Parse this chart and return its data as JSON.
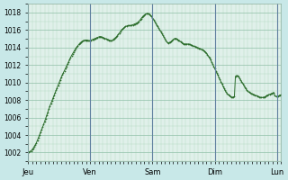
{
  "title": "",
  "background_color": "#c8e8e8",
  "plot_bg_color": "#e0f0ea",
  "line_color": "#2d6e2d",
  "marker_color": "#2d6e2d",
  "ylim": [
    1001,
    1019
  ],
  "yticks": [
    1002,
    1004,
    1006,
    1008,
    1010,
    1012,
    1014,
    1016,
    1018
  ],
  "xlabel": "",
  "ylabel": "",
  "x_day_labels": [
    "Jeu",
    "Ven",
    "Sam",
    "Dim",
    "Lun"
  ],
  "x_day_positions": [
    0,
    60,
    120,
    180,
    240
  ],
  "grid_major_color": "#90c0a8",
  "grid_minor_color": "#b0d8c0",
  "values": [
    1002.0,
    1002.05,
    1002.1,
    1002.2,
    1002.35,
    1002.5,
    1002.7,
    1002.9,
    1003.1,
    1003.4,
    1003.7,
    1004.0,
    1004.3,
    1004.6,
    1004.9,
    1005.2,
    1005.55,
    1005.9,
    1006.25,
    1006.6,
    1006.95,
    1007.3,
    1007.6,
    1007.9,
    1008.2,
    1008.5,
    1008.8,
    1009.1,
    1009.4,
    1009.7,
    1010.0,
    1010.3,
    1010.6,
    1010.85,
    1011.1,
    1011.35,
    1011.6,
    1011.85,
    1012.1,
    1012.35,
    1012.6,
    1012.85,
    1013.1,
    1013.3,
    1013.5,
    1013.7,
    1013.9,
    1014.05,
    1014.2,
    1014.35,
    1014.5,
    1014.6,
    1014.7,
    1014.75,
    1014.8,
    1014.85,
    1014.85,
    1014.85,
    1014.8,
    1014.75,
    1014.8,
    1014.85,
    1014.9,
    1014.95,
    1015.0,
    1015.05,
    1015.1,
    1015.15,
    1015.2,
    1015.25,
    1015.25,
    1015.2,
    1015.15,
    1015.1,
    1015.05,
    1015.0,
    1014.95,
    1014.9,
    1014.85,
    1014.8,
    1014.75,
    1014.8,
    1014.9,
    1015.0,
    1015.1,
    1015.2,
    1015.35,
    1015.5,
    1015.65,
    1015.8,
    1016.0,
    1016.1,
    1016.2,
    1016.3,
    1016.4,
    1016.45,
    1016.5,
    1016.5,
    1016.5,
    1016.5,
    1016.55,
    1016.6,
    1016.65,
    1016.7,
    1016.75,
    1016.8,
    1016.9,
    1017.0,
    1017.15,
    1017.3,
    1017.45,
    1017.6,
    1017.7,
    1017.8,
    1017.85,
    1017.9,
    1017.85,
    1017.8,
    1017.7,
    1017.55,
    1017.4,
    1017.2,
    1017.0,
    1016.8,
    1016.6,
    1016.4,
    1016.2,
    1016.0,
    1015.8,
    1015.6,
    1015.4,
    1015.2,
    1015.0,
    1014.8,
    1014.6,
    1014.5,
    1014.55,
    1014.6,
    1014.7,
    1014.8,
    1014.9,
    1015.0,
    1015.05,
    1015.0,
    1014.95,
    1014.85,
    1014.75,
    1014.65,
    1014.55,
    1014.45,
    1014.4,
    1014.4,
    1014.4,
    1014.4,
    1014.4,
    1014.4,
    1014.35,
    1014.3,
    1014.25,
    1014.2,
    1014.15,
    1014.1,
    1014.05,
    1014.0,
    1013.95,
    1013.9,
    1013.85,
    1013.8,
    1013.75,
    1013.7,
    1013.6,
    1013.5,
    1013.35,
    1013.2,
    1013.0,
    1012.8,
    1012.6,
    1012.35,
    1012.1,
    1011.85,
    1011.6,
    1011.35,
    1011.1,
    1010.85,
    1010.6,
    1010.35,
    1010.1,
    1009.85,
    1009.6,
    1009.35,
    1009.1,
    1008.9,
    1008.75,
    1008.6,
    1008.5,
    1008.4,
    1008.35,
    1008.3,
    1008.35,
    1008.4,
    1010.7,
    1010.8,
    1010.75,
    1010.65,
    1010.5,
    1010.3,
    1010.1,
    1009.9,
    1009.7,
    1009.5,
    1009.3,
    1009.1,
    1009.0,
    1008.9,
    1008.8,
    1008.75,
    1008.7,
    1008.65,
    1008.6,
    1008.55,
    1008.5,
    1008.45,
    1008.4,
    1008.35,
    1008.3,
    1008.3,
    1008.3,
    1008.3,
    1008.35,
    1008.4,
    1008.5,
    1008.55,
    1008.6,
    1008.65,
    1008.7,
    1008.75,
    1008.8,
    1008.85,
    1008.5,
    1008.4,
    1008.4,
    1008.45,
    1008.5,
    1008.55,
    1008.6
  ]
}
